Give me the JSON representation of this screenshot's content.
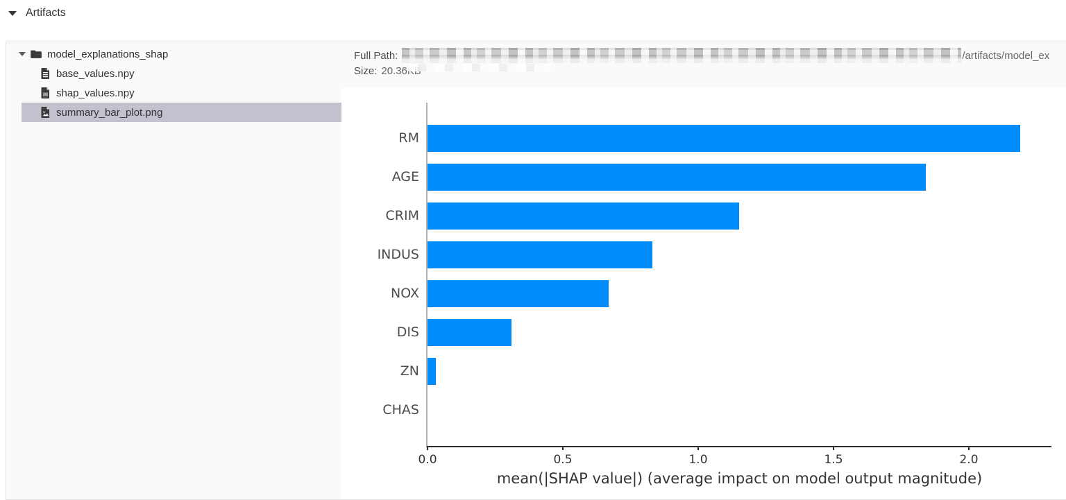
{
  "header": {
    "title": "Artifacts",
    "caret_icon": "caret-down-icon"
  },
  "tree": {
    "folder": {
      "label": "model_explanations_shap",
      "icon": "folder-icon",
      "expanded": true
    },
    "files": [
      {
        "label": "base_values.npy",
        "icon": "file-text-icon",
        "selected": false
      },
      {
        "label": "shap_values.npy",
        "icon": "file-binary-icon",
        "selected": false
      },
      {
        "label": "summary_bar_plot.png",
        "icon": "file-image-icon",
        "selected": true
      }
    ]
  },
  "meta": {
    "full_path_label": "Full Path:",
    "full_path_redacted": true,
    "full_path_visible_suffix": "/artifacts/model_ex",
    "size_label": "Size:",
    "size_value": "20.36KB"
  },
  "chart_data": {
    "type": "bar",
    "orientation": "horizontal",
    "title": "",
    "categories": [
      "RM",
      "AGE",
      "CRIM",
      "INDUS",
      "NOX",
      "DIS",
      "ZN",
      "CHAS"
    ],
    "values": [
      2.19,
      1.84,
      1.15,
      0.83,
      0.67,
      0.31,
      0.03,
      0.0
    ],
    "xlabel": "mean(|SHAP value|) (average impact on model output magnitude)",
    "ylabel": "",
    "xticks": [
      0.0,
      0.5,
      1.0,
      1.5,
      2.0
    ],
    "xlim": [
      0,
      2.31
    ],
    "grid": false,
    "legend": null,
    "bar_color": "#008bfb",
    "axis_color": "#2b2b2b",
    "spine_left_color": "#b3b3b3"
  },
  "colors": {
    "selected_row_bg": "#c5c0cd",
    "panel_bg": "#fafafa",
    "border": "#dedede",
    "bar_blue": "#008bfb"
  }
}
